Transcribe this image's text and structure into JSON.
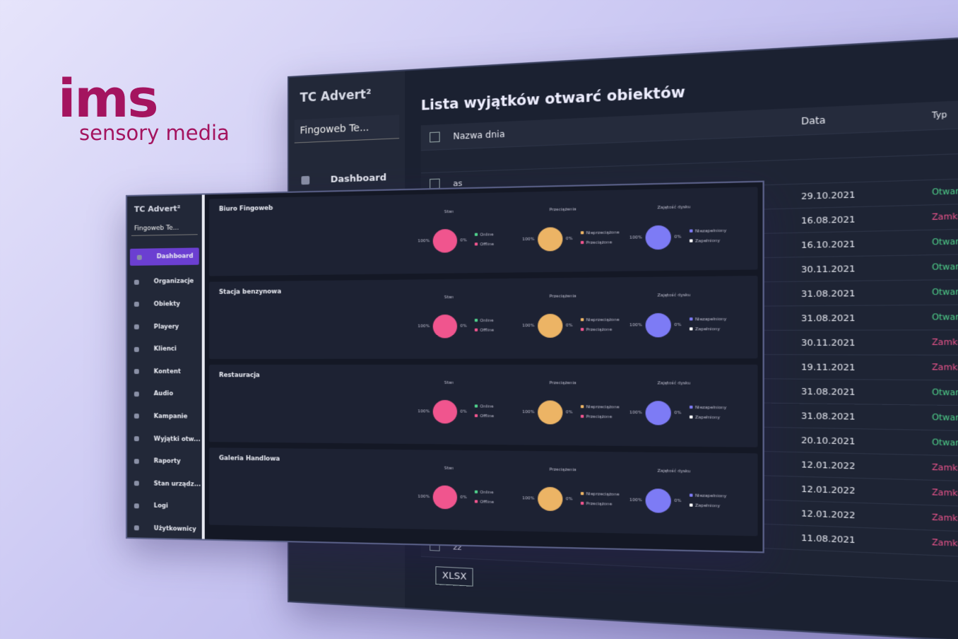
{
  "logo": {
    "mark": "ims",
    "tagline": "sensory media"
  },
  "back_screen": {
    "app_name": "TC Advert²",
    "organization": "Fingoweb Te...",
    "nav": [
      "Dashboard",
      "Organizacje",
      "Logi",
      "Użytkownicy"
    ],
    "title": "Lista wyjątków otwarć obiektów",
    "columns": [
      "Nazwa dnia",
      "Data",
      "Typ"
    ],
    "first_row_name": "as",
    "rows": [
      [
        "29.10.2021",
        "Otwarcie"
      ],
      [
        "16.08.2021",
        "Zamknięcie"
      ],
      [
        "16.10.2021",
        "Otwarcie"
      ],
      [
        "30.11.2021",
        "Otwarcie"
      ],
      [
        "31.08.2021",
        "Otwarcie"
      ],
      [
        "31.08.2021",
        "Otwarcie"
      ],
      [
        "30.11.2021",
        "Zamknięcie"
      ],
      [
        "19.11.2021",
        "Zamknięcie"
      ],
      [
        "31.08.2021",
        "Otwarcie"
      ],
      [
        "31.08.2021",
        "Otwarcie"
      ],
      [
        "20.10.2021",
        "Otwarcie"
      ],
      [
        "12.01.2022",
        "Zamknięcie"
      ],
      [
        "12.01.2022",
        "Zamknięcie"
      ],
      [
        "12.01.2022",
        "Zamknięcie"
      ],
      [
        "11.08.2021",
        "Zamknięcie"
      ]
    ],
    "last_row_name": "zz",
    "export_button": "XLSX"
  },
  "front_screen": {
    "app_name": "TC Advert²",
    "organization": "Fingoweb Te...",
    "nav": [
      "Dashboard",
      "Organizacje",
      "Obiekty",
      "Playery",
      "Klienci",
      "Kontent",
      "Audio",
      "Kampanie",
      "Wyjątki otw...",
      "Raporty",
      "Stan urządz...",
      "Logi",
      "Użytkownicy"
    ],
    "cards": [
      "Biuro Fingoweb",
      "Stacja benzynowa",
      "Restauracja",
      "Galeria Handlowa"
    ],
    "widgets": [
      {
        "title": "Stan",
        "color": "#f0558e",
        "full": "100%",
        "empty": "0%",
        "legend": [
          "Online",
          "Offline"
        ],
        "legend_colors": [
          "#4fd18b",
          "#f0558e"
        ]
      },
      {
        "title": "Przeciążenia",
        "color": "#ecb465",
        "full": "100%",
        "empty": "0%",
        "legend": [
          "Nieprzeciążone",
          "Przeciążone"
        ],
        "legend_colors": [
          "#ecb465",
          "#f0558e"
        ]
      },
      {
        "title": "Zajętość dysku",
        "color": "#7d7bf5",
        "full": "100%",
        "empty": "0%",
        "legend": [
          "Niezapełniony",
          "Zapełniony"
        ],
        "legend_colors": [
          "#7d7bf5",
          "#ffffff"
        ]
      }
    ]
  }
}
